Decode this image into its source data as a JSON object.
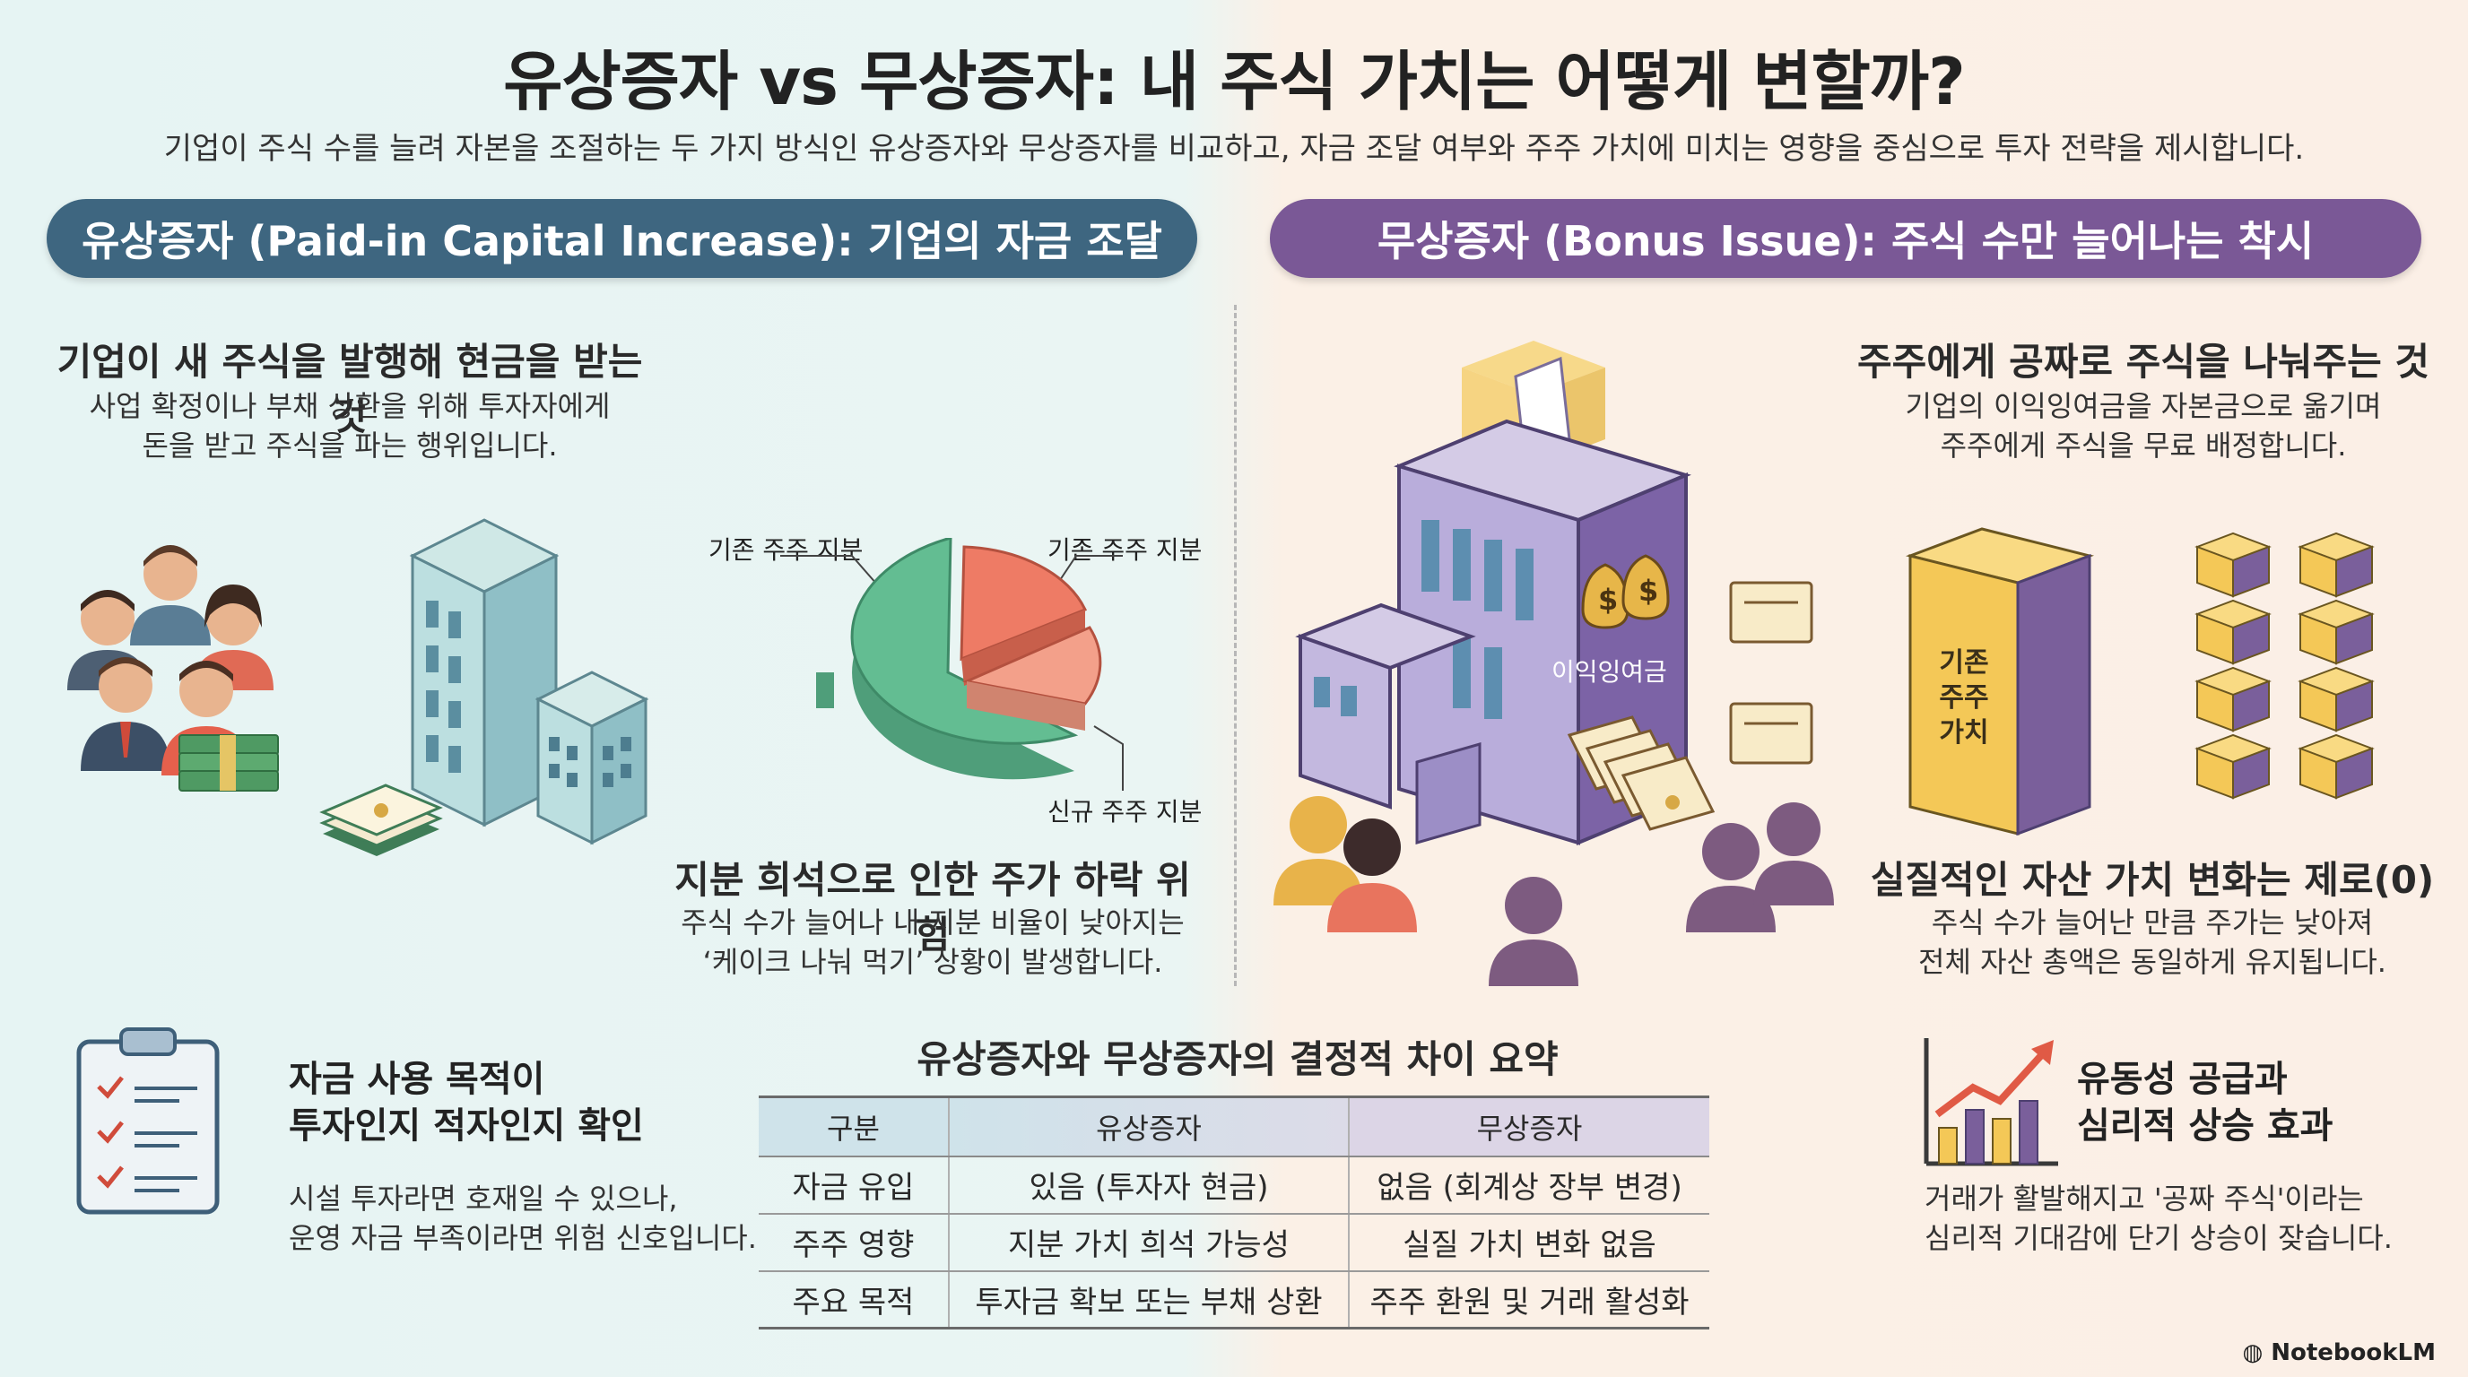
{
  "title": "유상증자 vs 무상증자: 내 주식 가치는 어떻게 변할까?",
  "subtitle": "기업이 주식 수를 늘려 자본을 조절하는 두 가지 방식인 유상증자와 무상증자를 비교하고, 자금 조달 여부와 주주 가치에 미치는 영향을 중심으로 투자 전략을 제시합니다.",
  "left": {
    "banner": "유상증자 (Paid-in Capital Increase): 기업의 자금 조달",
    "definition_heading": "기업이 새 주식을 발행해 현금을 받는 것",
    "definition_body_1": "사업 확정이나 부채 상환을 위해 투자자에게",
    "definition_body_2": "돈을 받고 주식을 파는 행위입니다.",
    "pie_labels": {
      "top_left": "기존 주주 지분",
      "top_right": "기존 주주 지분",
      "bottom_right": "신규 주주 지분"
    },
    "risk_heading": "지분 희석으로 인한 주가 하락 위험",
    "risk_body_1": "주식 수가 늘어나 내 지분 비율이 낮아지는",
    "risk_body_2": "‘케이크 나눠 먹기’ 상황이 발생합니다.",
    "check_heading_1": "자금 사용 목적이",
    "check_heading_2": "투자인지 적자인지 확인",
    "check_body_1": "시설 투자라면 호재일 수 있으나,",
    "check_body_2": "운영 자금 부족이라면 위험 신호입니다."
  },
  "right": {
    "banner": "무상증자 (Bonus Issue): 주식 수만 늘어나는 착시",
    "definition_heading": "주주에게 공짜로 주식을 나눠주는 것",
    "definition_body_1": "기업의 이익잉여금을 자본금으로 옮기며",
    "definition_body_2": "주주에게 주식을 무료 배정합니다.",
    "building_label": "이익잉여금",
    "value_block_label": "기존 주주 가치",
    "value_heading": "실질적인 자산 가치 변화는 제로(0)",
    "value_body_1": "주식 수가 늘어난 만큼 주가는 낮아져",
    "value_body_2": "전체 자산 총액은 동일하게 유지됩니다.",
    "liquidity_heading_1": "유동성 공급과",
    "liquidity_heading_2": "심리적 상승 효과",
    "liquidity_body_1": "거래가 활발해지고 '공짜 주식'이라는",
    "liquidity_body_2": "심리적 기대감에 단기 상승이 잦습니다."
  },
  "table": {
    "title": "유상증자와 무상증자의 결정적 차이 요약",
    "headers": [
      "구분",
      "유상증자",
      "무상증자"
    ],
    "rows": [
      [
        "자금 유입",
        "있음 (투자자 현금)",
        "없음 (회계상 장부 변경)"
      ],
      [
        "주주 영향",
        "지분 가치 희석 가능성",
        "실질 가치 변화 없음"
      ],
      [
        "주요 목적",
        "투자금 확보 또는 부채 상환",
        "주주 환원 및 거래 활성화"
      ]
    ]
  },
  "watermark": "NotebookLM",
  "colors": {
    "left_banner": "#3e6680",
    "right_banner": "#7a5896",
    "pie_existing": "#5ab58e",
    "pie_new_1": "#ee7b65",
    "pie_new_2": "#f3a08a"
  }
}
